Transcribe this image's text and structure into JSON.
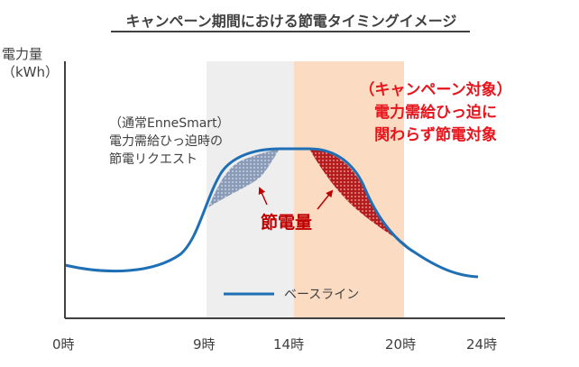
{
  "title": "キャンペーン期間における節電タイミングイメージ",
  "y_axis": {
    "line1": "電力量",
    "line2": "（kWh）"
  },
  "x_ticks": [
    "0時",
    "9時",
    "14時",
    "20時",
    "24時"
  ],
  "periods": {
    "normal_request": {
      "from": "9時",
      "to": "14時",
      "color": "#eeeeee"
    },
    "campaign": {
      "from": "14時",
      "to": "20時",
      "color": "#fbdcc2"
    }
  },
  "notes": {
    "normal": [
      "（通常EnneSmart）",
      "電力需給ひっ迫時の",
      "節電リクエスト"
    ],
    "campaign": [
      "（キャンペーン対象）",
      "電力需給ひっ迫に",
      "関わらず節電対象"
    ]
  },
  "saving_label": "節電量",
  "legend": {
    "baseline": "ベースライン"
  },
  "colors": {
    "baseline": "#1f6fb5",
    "normal_saving": "#8a9bb8",
    "campaign_saving": "#b71c1c",
    "arrow": "#c00000",
    "campaign_text": "#e8141c"
  }
}
